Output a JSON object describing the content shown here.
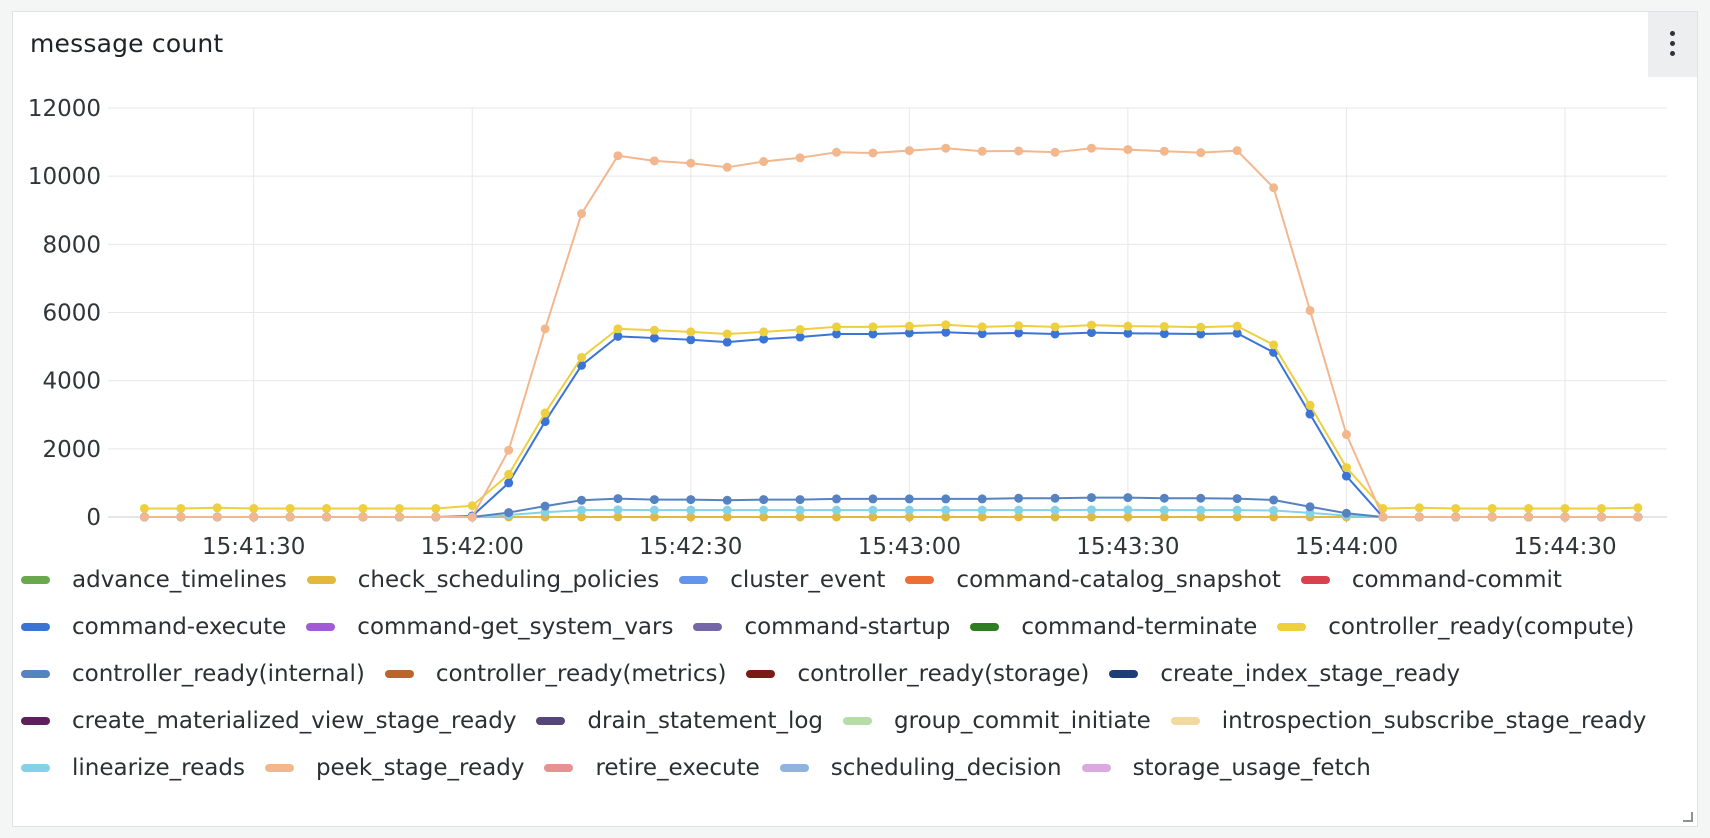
{
  "panel": {
    "title": "message count",
    "menu_icon": "vertical-ellipsis-icon",
    "resize_icon": "resize-corner-icon"
  },
  "chart_data": {
    "type": "line",
    "title": "message count",
    "xlabel": "",
    "ylabel": "",
    "x_axis_type": "time",
    "xlim": [
      "15:41:10",
      "15:44:44"
    ],
    "ylim": [
      0,
      12000
    ],
    "y_ticks": [
      0,
      2000,
      4000,
      6000,
      8000,
      10000,
      12000
    ],
    "x_tick_labels": [
      "15:41:30",
      "15:42:00",
      "15:42:30",
      "15:43:00",
      "15:43:30",
      "15:44:00",
      "15:44:30"
    ],
    "x": [
      "15:41:15",
      "15:41:20",
      "15:41:25",
      "15:41:30",
      "15:41:35",
      "15:41:40",
      "15:41:45",
      "15:41:50",
      "15:41:55",
      "15:42:00",
      "15:42:05",
      "15:42:10",
      "15:42:15",
      "15:42:20",
      "15:42:25",
      "15:42:30",
      "15:42:35",
      "15:42:40",
      "15:42:45",
      "15:42:50",
      "15:42:55",
      "15:43:00",
      "15:43:05",
      "15:43:10",
      "15:43:15",
      "15:43:20",
      "15:43:25",
      "15:43:30",
      "15:43:35",
      "15:43:40",
      "15:43:45",
      "15:43:50",
      "15:43:55",
      "15:44:00",
      "15:44:05",
      "15:44:10",
      "15:44:15",
      "15:44:20",
      "15:44:25",
      "15:44:30",
      "15:44:35",
      "15:44:40"
    ],
    "grid": true,
    "legend_position": "bottom",
    "series": [
      {
        "name": "advance_timelines",
        "color": "#6aa84f",
        "values": null
      },
      {
        "name": "check_scheduling_policies",
        "color": "#e3b93c",
        "values": [
          0,
          0,
          0,
          0,
          0,
          0,
          0,
          0,
          0,
          0,
          0,
          0,
          0,
          0,
          0,
          0,
          0,
          0,
          0,
          0,
          0,
          0,
          0,
          0,
          0,
          0,
          0,
          0,
          0,
          0,
          0,
          0,
          0,
          0,
          0,
          0,
          0,
          0,
          0,
          0,
          0,
          0
        ]
      },
      {
        "name": "cluster_event",
        "color": "#6395ec",
        "values": null
      },
      {
        "name": "command-catalog_snapshot",
        "color": "#ee6f33",
        "values": null
      },
      {
        "name": "command-commit",
        "color": "#d8414e",
        "values": null
      },
      {
        "name": "command-execute",
        "color": "#3a74d6",
        "values": [
          0,
          0,
          0,
          0,
          0,
          0,
          0,
          0,
          0,
          30,
          1000,
          2800,
          4450,
          5300,
          5250,
          5200,
          5130,
          5220,
          5280,
          5370,
          5370,
          5400,
          5420,
          5380,
          5400,
          5370,
          5410,
          5390,
          5380,
          5370,
          5390,
          4830,
          3020,
          1200,
          0,
          0,
          0,
          0,
          0,
          0,
          0,
          0
        ]
      },
      {
        "name": "command-get_system_vars",
        "color": "#a25ad9",
        "values": null
      },
      {
        "name": "command-startup",
        "color": "#7467a8",
        "values": null
      },
      {
        "name": "command-terminate",
        "color": "#2e7d22",
        "values": null
      },
      {
        "name": "controller_ready(compute)",
        "color": "#edcf3f",
        "values": [
          250,
          250,
          270,
          250,
          250,
          250,
          250,
          250,
          250,
          330,
          1250,
          3050,
          4680,
          5520,
          5480,
          5430,
          5370,
          5430,
          5500,
          5580,
          5580,
          5600,
          5640,
          5580,
          5610,
          5580,
          5630,
          5600,
          5590,
          5570,
          5600,
          5050,
          3280,
          1450,
          250,
          270,
          250,
          250,
          250,
          250,
          250,
          270
        ]
      },
      {
        "name": "controller_ready(internal)",
        "color": "#5782c2",
        "values": [
          0,
          0,
          0,
          0,
          0,
          0,
          0,
          0,
          0,
          0,
          130,
          320,
          490,
          540,
          510,
          510,
          490,
          510,
          510,
          530,
          530,
          530,
          530,
          530,
          550,
          550,
          570,
          570,
          550,
          550,
          540,
          500,
          300,
          110,
          0,
          0,
          0,
          0,
          0,
          0,
          0,
          0
        ]
      },
      {
        "name": "controller_ready(metrics)",
        "color": "#b86530",
        "values": null
      },
      {
        "name": "controller_ready(storage)",
        "color": "#7c1a14",
        "values": null
      },
      {
        "name": "create_index_stage_ready",
        "color": "#1d3e75",
        "values": null
      },
      {
        "name": "create_materialized_view_stage_ready",
        "color": "#5e1f5c",
        "values": null
      },
      {
        "name": "drain_statement_log",
        "color": "#55467a",
        "values": null
      },
      {
        "name": "group_commit_initiate",
        "color": "#b6dca9",
        "values": null
      },
      {
        "name": "introspection_subscribe_stage_ready",
        "color": "#f2d9a2",
        "values": null
      },
      {
        "name": "linearize_reads",
        "color": "#84d2e8",
        "values": [
          0,
          0,
          0,
          0,
          0,
          0,
          0,
          0,
          0,
          0,
          60,
          140,
          200,
          210,
          200,
          200,
          200,
          200,
          200,
          200,
          200,
          200,
          200,
          200,
          200,
          200,
          210,
          210,
          200,
          200,
          200,
          190,
          120,
          40,
          0,
          0,
          0,
          0,
          0,
          0,
          0,
          0
        ]
      },
      {
        "name": "peek_stage_ready",
        "color": "#f3b78e",
        "values": [
          0,
          0,
          0,
          0,
          0,
          0,
          0,
          0,
          0,
          0,
          1960,
          5520,
          8900,
          10600,
          10450,
          10380,
          10260,
          10430,
          10540,
          10700,
          10680,
          10750,
          10820,
          10730,
          10740,
          10700,
          10820,
          10780,
          10730,
          10690,
          10750,
          9660,
          6060,
          2420,
          0,
          0,
          0,
          0,
          0,
          0,
          0,
          0
        ]
      },
      {
        "name": "retire_execute",
        "color": "#e79192",
        "values": null
      },
      {
        "name": "scheduling_decision",
        "color": "#8fb3dc",
        "values": null
      },
      {
        "name": "storage_usage_fetch",
        "color": "#dba8e0",
        "values": null
      }
    ]
  },
  "legend_rows": [
    [
      0,
      1,
      2,
      3,
      4
    ],
    [
      5,
      6,
      7,
      8,
      9
    ],
    [
      10,
      11,
      12,
      13
    ],
    [
      14,
      15,
      16,
      17
    ],
    [
      18,
      19,
      20,
      21,
      22
    ]
  ]
}
